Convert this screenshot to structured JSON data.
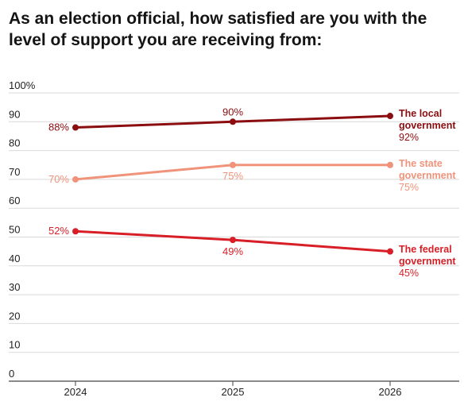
{
  "title": "As an election official, how satisfied are you with the level of support you are receiving from:",
  "chart_data": {
    "type": "line",
    "title": "As an election official, how satisfied are you with the level of support you are receiving from:",
    "x": [
      "2024",
      "2025",
      "2026"
    ],
    "y_ticks": [
      "0",
      "10",
      "20",
      "30",
      "40",
      "50",
      "60",
      "70",
      "80",
      "90",
      "100%"
    ],
    "ylim": [
      0,
      100
    ],
    "grid": true,
    "series": [
      {
        "name_lines": [
          "The local",
          "government"
        ],
        "end_label": "92%",
        "color": "#8b0d10",
        "values": [
          88,
          90,
          92
        ],
        "point_labels": [
          "88%",
          "90%",
          null
        ]
      },
      {
        "name_lines": [
          "The state",
          "government"
        ],
        "end_label": "75%",
        "color": "#f0937a",
        "values": [
          70,
          75,
          75
        ],
        "point_labels": [
          "70%",
          "75%",
          null
        ]
      },
      {
        "name_lines": [
          "The federal",
          "government"
        ],
        "end_label": "45%",
        "color": "#d81e26",
        "values": [
          52,
          49,
          45
        ],
        "point_labels": [
          "52%",
          "49%",
          null
        ]
      }
    ]
  }
}
